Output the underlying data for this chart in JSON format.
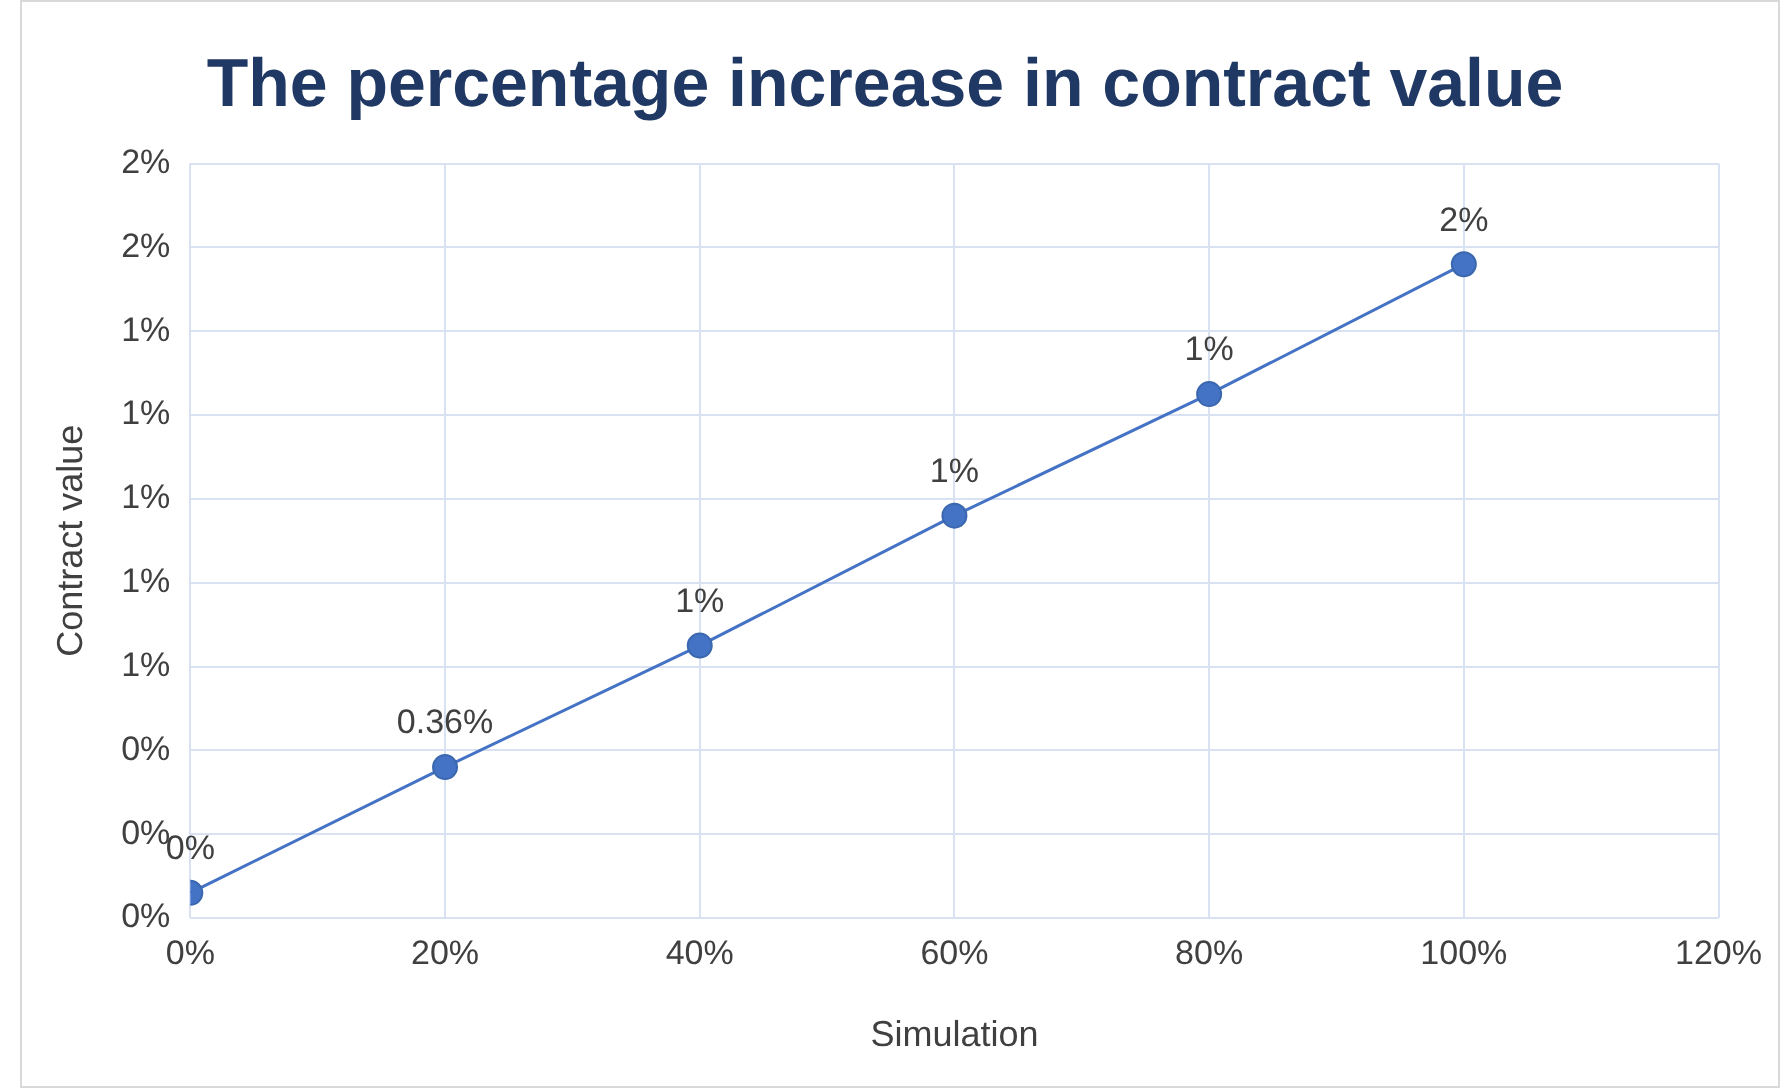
{
  "chart_data": {
    "type": "line",
    "title": "The percentage increase in contract value",
    "xlabel": "Simulation",
    "ylabel": "Contract value",
    "x": [
      0,
      20,
      40,
      60,
      80,
      100
    ],
    "series": [
      {
        "color": "#4472c4",
        "values": [
          0.06,
          0.36,
          0.65,
          0.96,
          1.25,
          1.56
        ],
        "value_labels": [
          "0%",
          "0.36%",
          "1%",
          "1%",
          "1%",
          "2%"
        ]
      }
    ],
    "xlim": [
      0,
      120
    ],
    "xticks": [
      {
        "value": 0,
        "label": "0%"
      },
      {
        "value": 20,
        "label": "20%"
      },
      {
        "value": 40,
        "label": "40%"
      },
      {
        "value": 60,
        "label": "60%"
      },
      {
        "value": 80,
        "label": "80%"
      },
      {
        "value": 100,
        "label": "100%"
      },
      {
        "value": 120,
        "label": "120%"
      }
    ],
    "ylim": [
      0,
      1.8
    ],
    "yticks": [
      {
        "value": 0,
        "label": "0%"
      },
      {
        "value": 0.2,
        "label": "0%"
      },
      {
        "value": 0.4,
        "label": "0%"
      },
      {
        "value": 0.6,
        "label": "1%"
      },
      {
        "value": 0.8,
        "label": "1%"
      },
      {
        "value": 1.0,
        "label": "1%"
      },
      {
        "value": 1.2,
        "label": "1%"
      },
      {
        "value": 1.4,
        "label": "1%"
      },
      {
        "value": 1.6,
        "label": "2%"
      },
      {
        "value": 1.8,
        "label": "2%"
      }
    ],
    "grid": true,
    "marker": "circle",
    "line_style": "solid"
  }
}
